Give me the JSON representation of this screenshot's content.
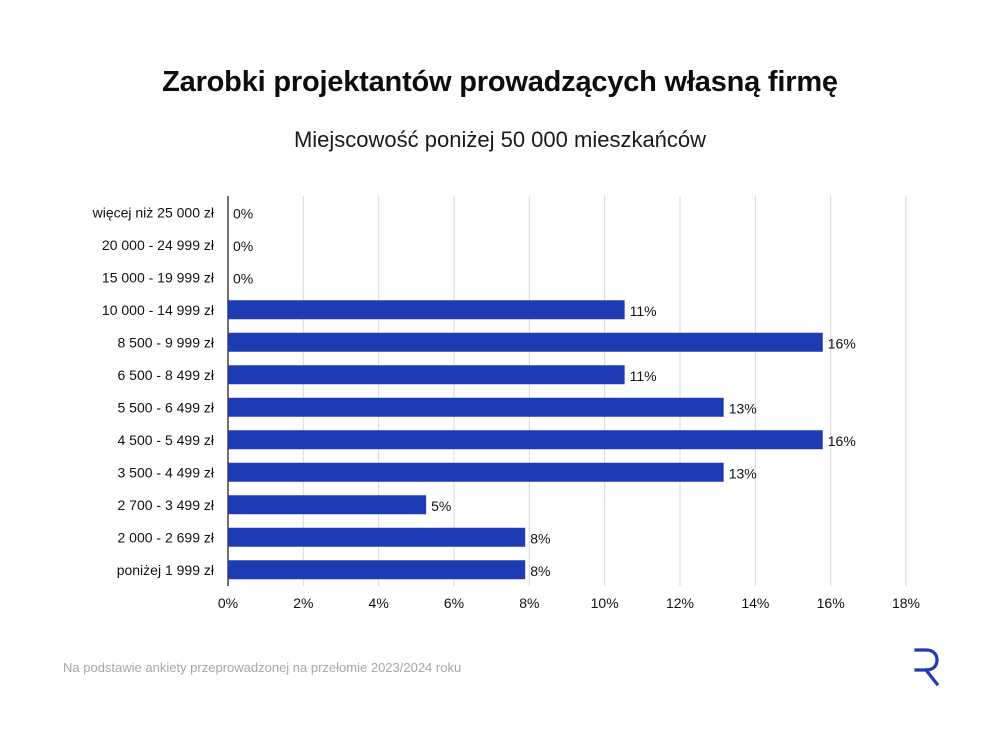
{
  "title": "Zarobki projektantów prowadzących własną firmę",
  "subtitle": "Miejscowość poniżej 50 000 mieszkańców",
  "footnote": "Na podstawie ankiety przeprowadzonej na przełomie 2023/2024 roku",
  "logo_icon": "r-logo-icon",
  "colors": {
    "bar": "#1f3bb3",
    "grid": "#d9d9d9",
    "axis": "#111111",
    "logo": "#1f3bb3"
  },
  "chart_data": {
    "type": "bar",
    "orientation": "horizontal",
    "categories": [
      "więcej niż 25 000 zł",
      "20 000 - 24 999 zł",
      "15 000 - 19 999 zł",
      "10 000 - 14 999 zł",
      "8 500 - 9 999 zł",
      "6 500 - 8 499 zł",
      "5 500 - 6 499 zł",
      "4 500 - 5 499 zł",
      "3 500 - 4 499 zł",
      "2 700 - 3 499 zł",
      "2 000 - 2 699 zł",
      "poniżej 1 999 zł"
    ],
    "values": [
      0,
      0,
      0,
      10.53,
      15.79,
      10.53,
      13.16,
      15.79,
      13.16,
      5.26,
      7.89,
      7.89
    ],
    "value_labels": [
      "0%",
      "0%",
      "0%",
      "11%",
      "16%",
      "11%",
      "13%",
      "16%",
      "13%",
      "5%",
      "8%",
      "8%"
    ],
    "xlim": [
      0,
      18
    ],
    "xticks": [
      0,
      2,
      4,
      6,
      8,
      10,
      12,
      14,
      16,
      18
    ],
    "xtick_labels": [
      "0%",
      "2%",
      "4%",
      "6%",
      "8%",
      "10%",
      "12%",
      "14%",
      "16%",
      "18%"
    ],
    "grid": true,
    "legend": "none"
  }
}
